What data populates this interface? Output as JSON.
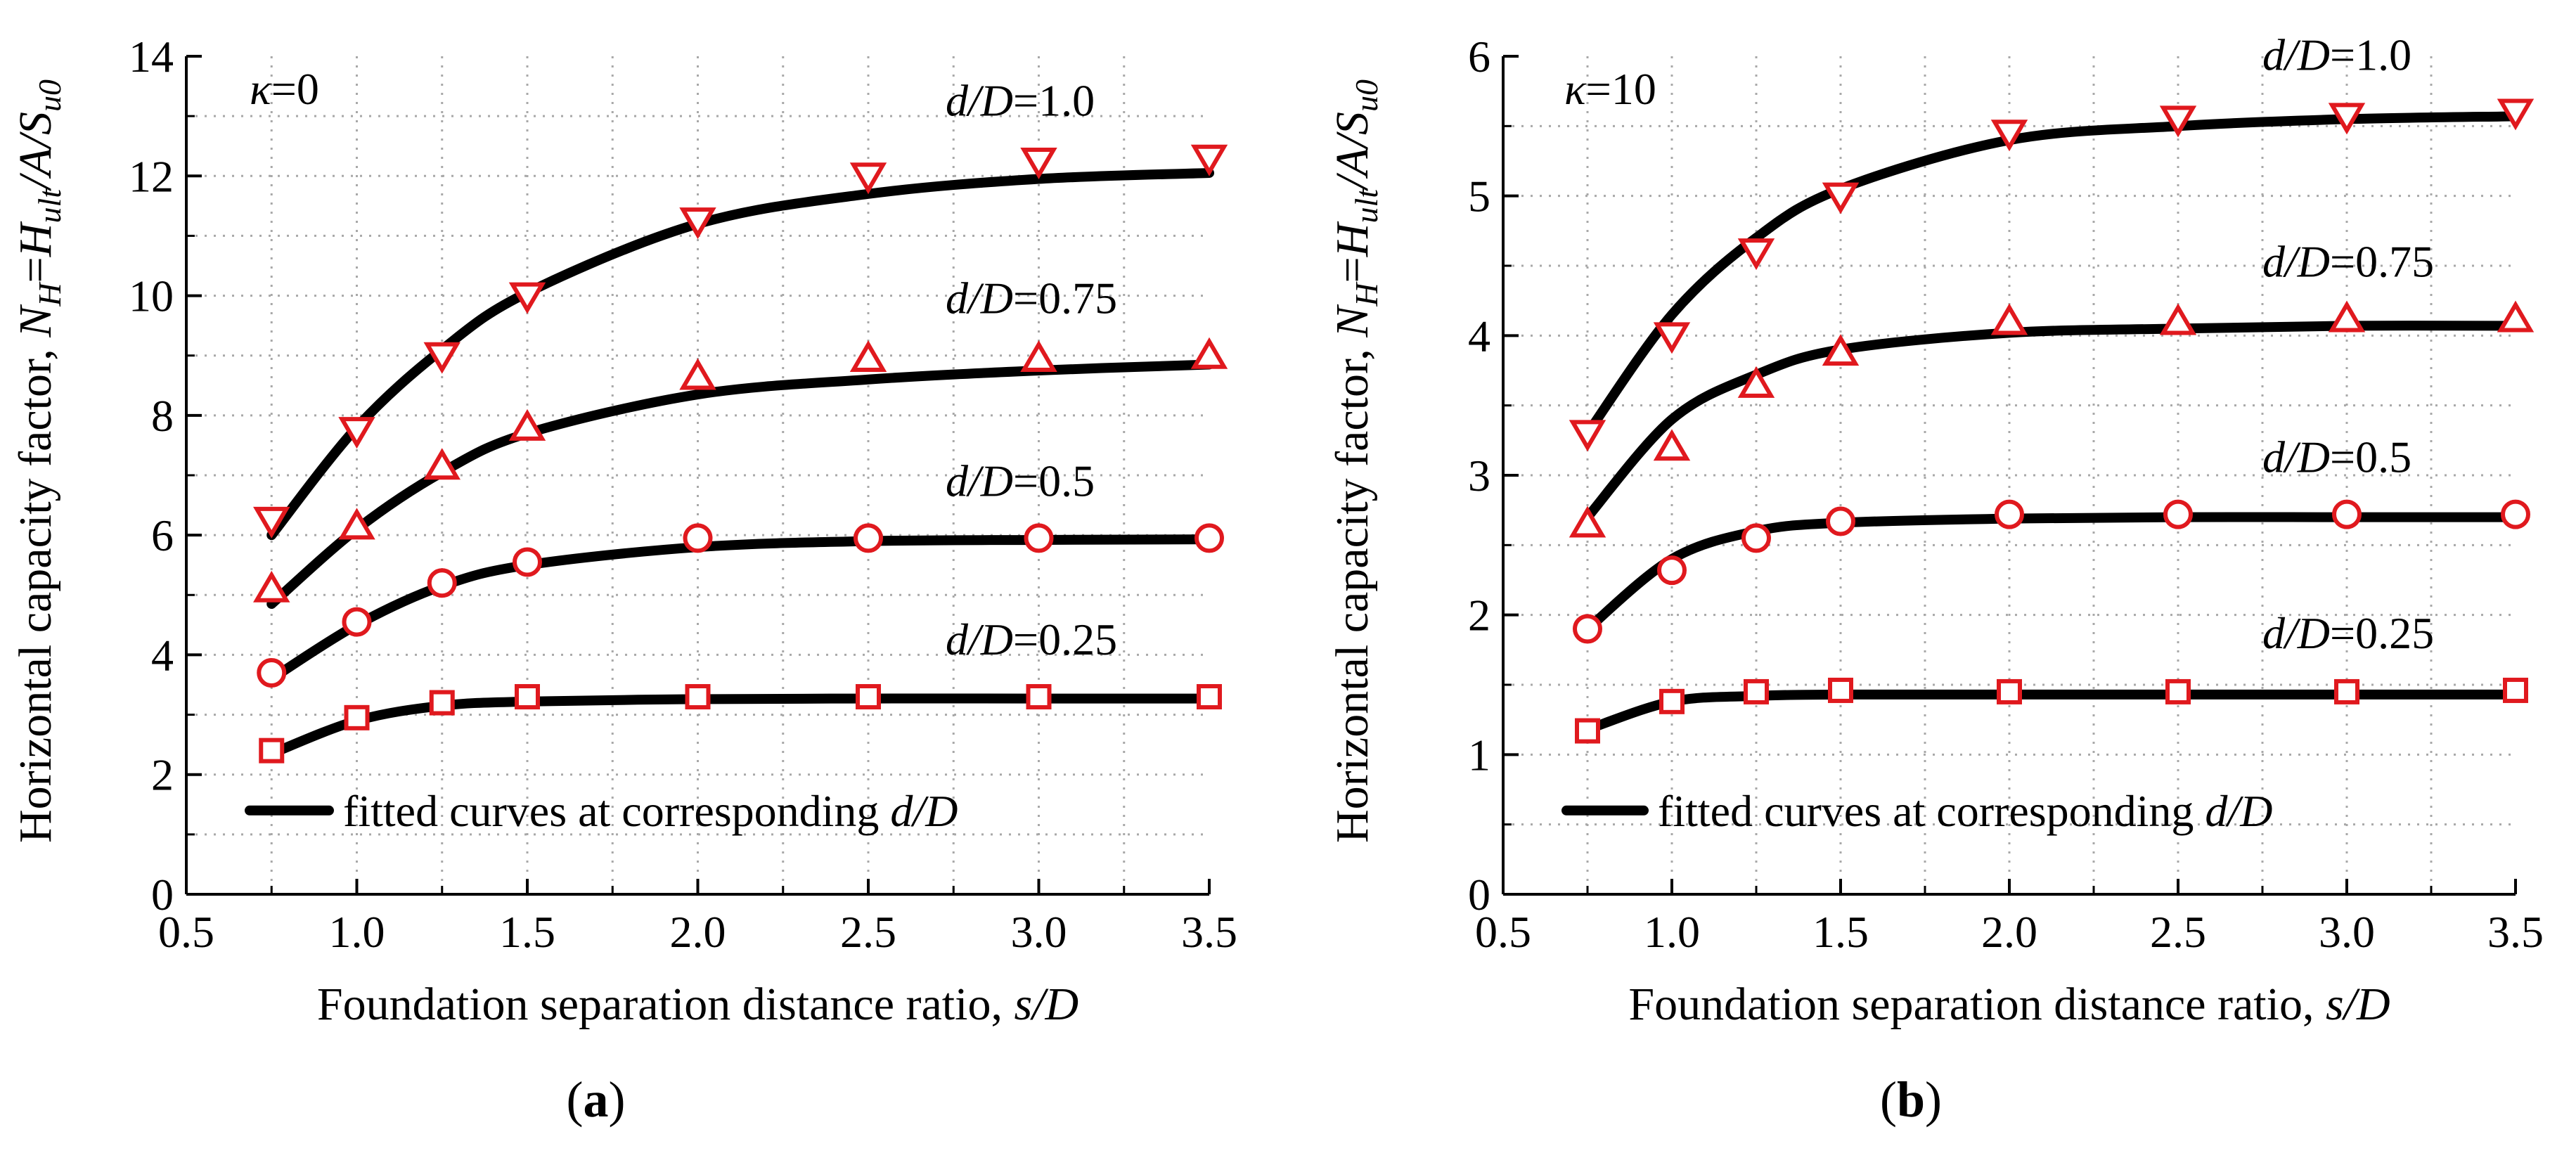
{
  "chart_data": [
    {
      "type": "line",
      "panel_label": "(a)",
      "panel_letter": "a",
      "kappa_label": "κ=0",
      "xlabel": "Foundation separation distance ratio, s/D",
      "ylabel": "Horizontal capacity factor, NH=Hult/A/Su0",
      "xlim": [
        0.5,
        3.5
      ],
      "ylim": [
        0,
        14
      ],
      "xticks": [
        "0.5",
        "1.0",
        "1.5",
        "2.0",
        "2.5",
        "3.0",
        "3.5"
      ],
      "yticks": [
        "0",
        "2",
        "4",
        "6",
        "8",
        "10",
        "12",
        "14"
      ],
      "grid": true,
      "legend_label": "fitted curves at corresponding d/D",
      "legend_position": "bottom-left",
      "series": [
        {
          "name": "d/D=1.0",
          "label": "d/D=1.0",
          "marker": "triangle-down",
          "x": [
            0.75,
            1.0,
            1.25,
            1.5,
            2.0,
            2.5,
            3.0,
            3.5
          ],
          "values": [
            6.25,
            7.75,
            9.0,
            10.0,
            11.25,
            12.0,
            12.25,
            12.3
          ],
          "fit": [
            6.0,
            7.8,
            9.1,
            10.05,
            11.2,
            11.7,
            11.95,
            12.05
          ]
        },
        {
          "name": "d/D=0.75",
          "label": "d/D=0.75",
          "marker": "triangle-up",
          "x": [
            0.75,
            1.0,
            1.25,
            1.5,
            2.0,
            2.5,
            3.0,
            3.5
          ],
          "values": [
            5.1,
            6.15,
            7.15,
            7.8,
            8.65,
            8.95,
            8.95,
            9.0
          ],
          "fit": [
            4.85,
            6.1,
            7.05,
            7.7,
            8.35,
            8.6,
            8.75,
            8.85
          ]
        },
        {
          "name": "d/D=0.5",
          "label": "d/D=0.5",
          "marker": "circle",
          "x": [
            0.75,
            1.0,
            1.25,
            1.5,
            2.0,
            2.5,
            3.0,
            3.5
          ],
          "values": [
            3.7,
            4.55,
            5.2,
            5.55,
            5.95,
            5.95,
            5.95,
            5.95
          ],
          "fit": [
            3.6,
            4.5,
            5.15,
            5.5,
            5.8,
            5.9,
            5.92,
            5.93
          ]
        },
        {
          "name": "d/D=0.25",
          "label": "d/D=0.25",
          "marker": "square",
          "x": [
            0.75,
            1.0,
            1.25,
            1.5,
            2.0,
            2.5,
            3.0,
            3.5
          ],
          "values": [
            2.4,
            2.95,
            3.2,
            3.3,
            3.3,
            3.3,
            3.3,
            3.3
          ],
          "fit": [
            2.35,
            2.9,
            3.15,
            3.22,
            3.26,
            3.27,
            3.27,
            3.27
          ]
        }
      ]
    },
    {
      "type": "line",
      "panel_label": "(b)",
      "panel_letter": "b",
      "kappa_label": "κ=10",
      "xlabel": "Foundation separation distance ratio, s/D",
      "ylabel": "Horizontal capacity factor, NH=Hult/A/Su0",
      "xlim": [
        0.5,
        3.5
      ],
      "ylim": [
        0,
        6
      ],
      "xticks": [
        "0.5",
        "1.0",
        "1.5",
        "2.0",
        "2.5",
        "3.0",
        "3.5"
      ],
      "yticks": [
        "0",
        "1",
        "2",
        "3",
        "4",
        "5",
        "6"
      ],
      "grid": true,
      "legend_label": "fitted curves at corresponding d/D",
      "legend_position": "bottom-left",
      "series": [
        {
          "name": "d/D=1.0",
          "label": "d/D=1.0",
          "marker": "triangle-down",
          "x": [
            0.75,
            1.0,
            1.25,
            1.5,
            2.0,
            2.5,
            3.0,
            3.5
          ],
          "values": [
            3.3,
            4.0,
            4.6,
            5.0,
            5.45,
            5.55,
            5.57,
            5.6
          ],
          "fit": [
            3.3,
            4.15,
            4.7,
            5.05,
            5.4,
            5.5,
            5.55,
            5.57
          ]
        },
        {
          "name": "d/D=0.75",
          "label": "d/D=0.75",
          "marker": "triangle-up",
          "x": [
            0.75,
            1.0,
            1.25,
            1.5,
            2.0,
            2.5,
            3.0,
            3.5
          ],
          "values": [
            2.65,
            3.2,
            3.65,
            3.88,
            4.1,
            4.1,
            4.12,
            4.12
          ],
          "fit": [
            2.7,
            3.4,
            3.72,
            3.9,
            4.02,
            4.05,
            4.07,
            4.07
          ]
        },
        {
          "name": "d/D=0.5",
          "label": "d/D=0.5",
          "marker": "circle",
          "x": [
            0.75,
            1.0,
            1.25,
            1.5,
            2.0,
            2.5,
            3.0,
            3.5
          ],
          "values": [
            1.9,
            2.32,
            2.55,
            2.67,
            2.72,
            2.72,
            2.72,
            2.72
          ],
          "fit": [
            1.9,
            2.4,
            2.6,
            2.66,
            2.69,
            2.7,
            2.7,
            2.7
          ]
        },
        {
          "name": "d/D=0.25",
          "label": "d/D=0.25",
          "marker": "square",
          "x": [
            0.75,
            1.0,
            1.25,
            1.5,
            2.0,
            2.5,
            3.0,
            3.5
          ],
          "values": [
            1.17,
            1.38,
            1.45,
            1.46,
            1.45,
            1.45,
            1.45,
            1.46
          ],
          "fit": [
            1.18,
            1.38,
            1.42,
            1.43,
            1.43,
            1.43,
            1.43,
            1.43
          ]
        }
      ]
    }
  ],
  "colors": {
    "marker": "#e0191e",
    "curve": "#000000",
    "grid": "#a8a8a8"
  }
}
